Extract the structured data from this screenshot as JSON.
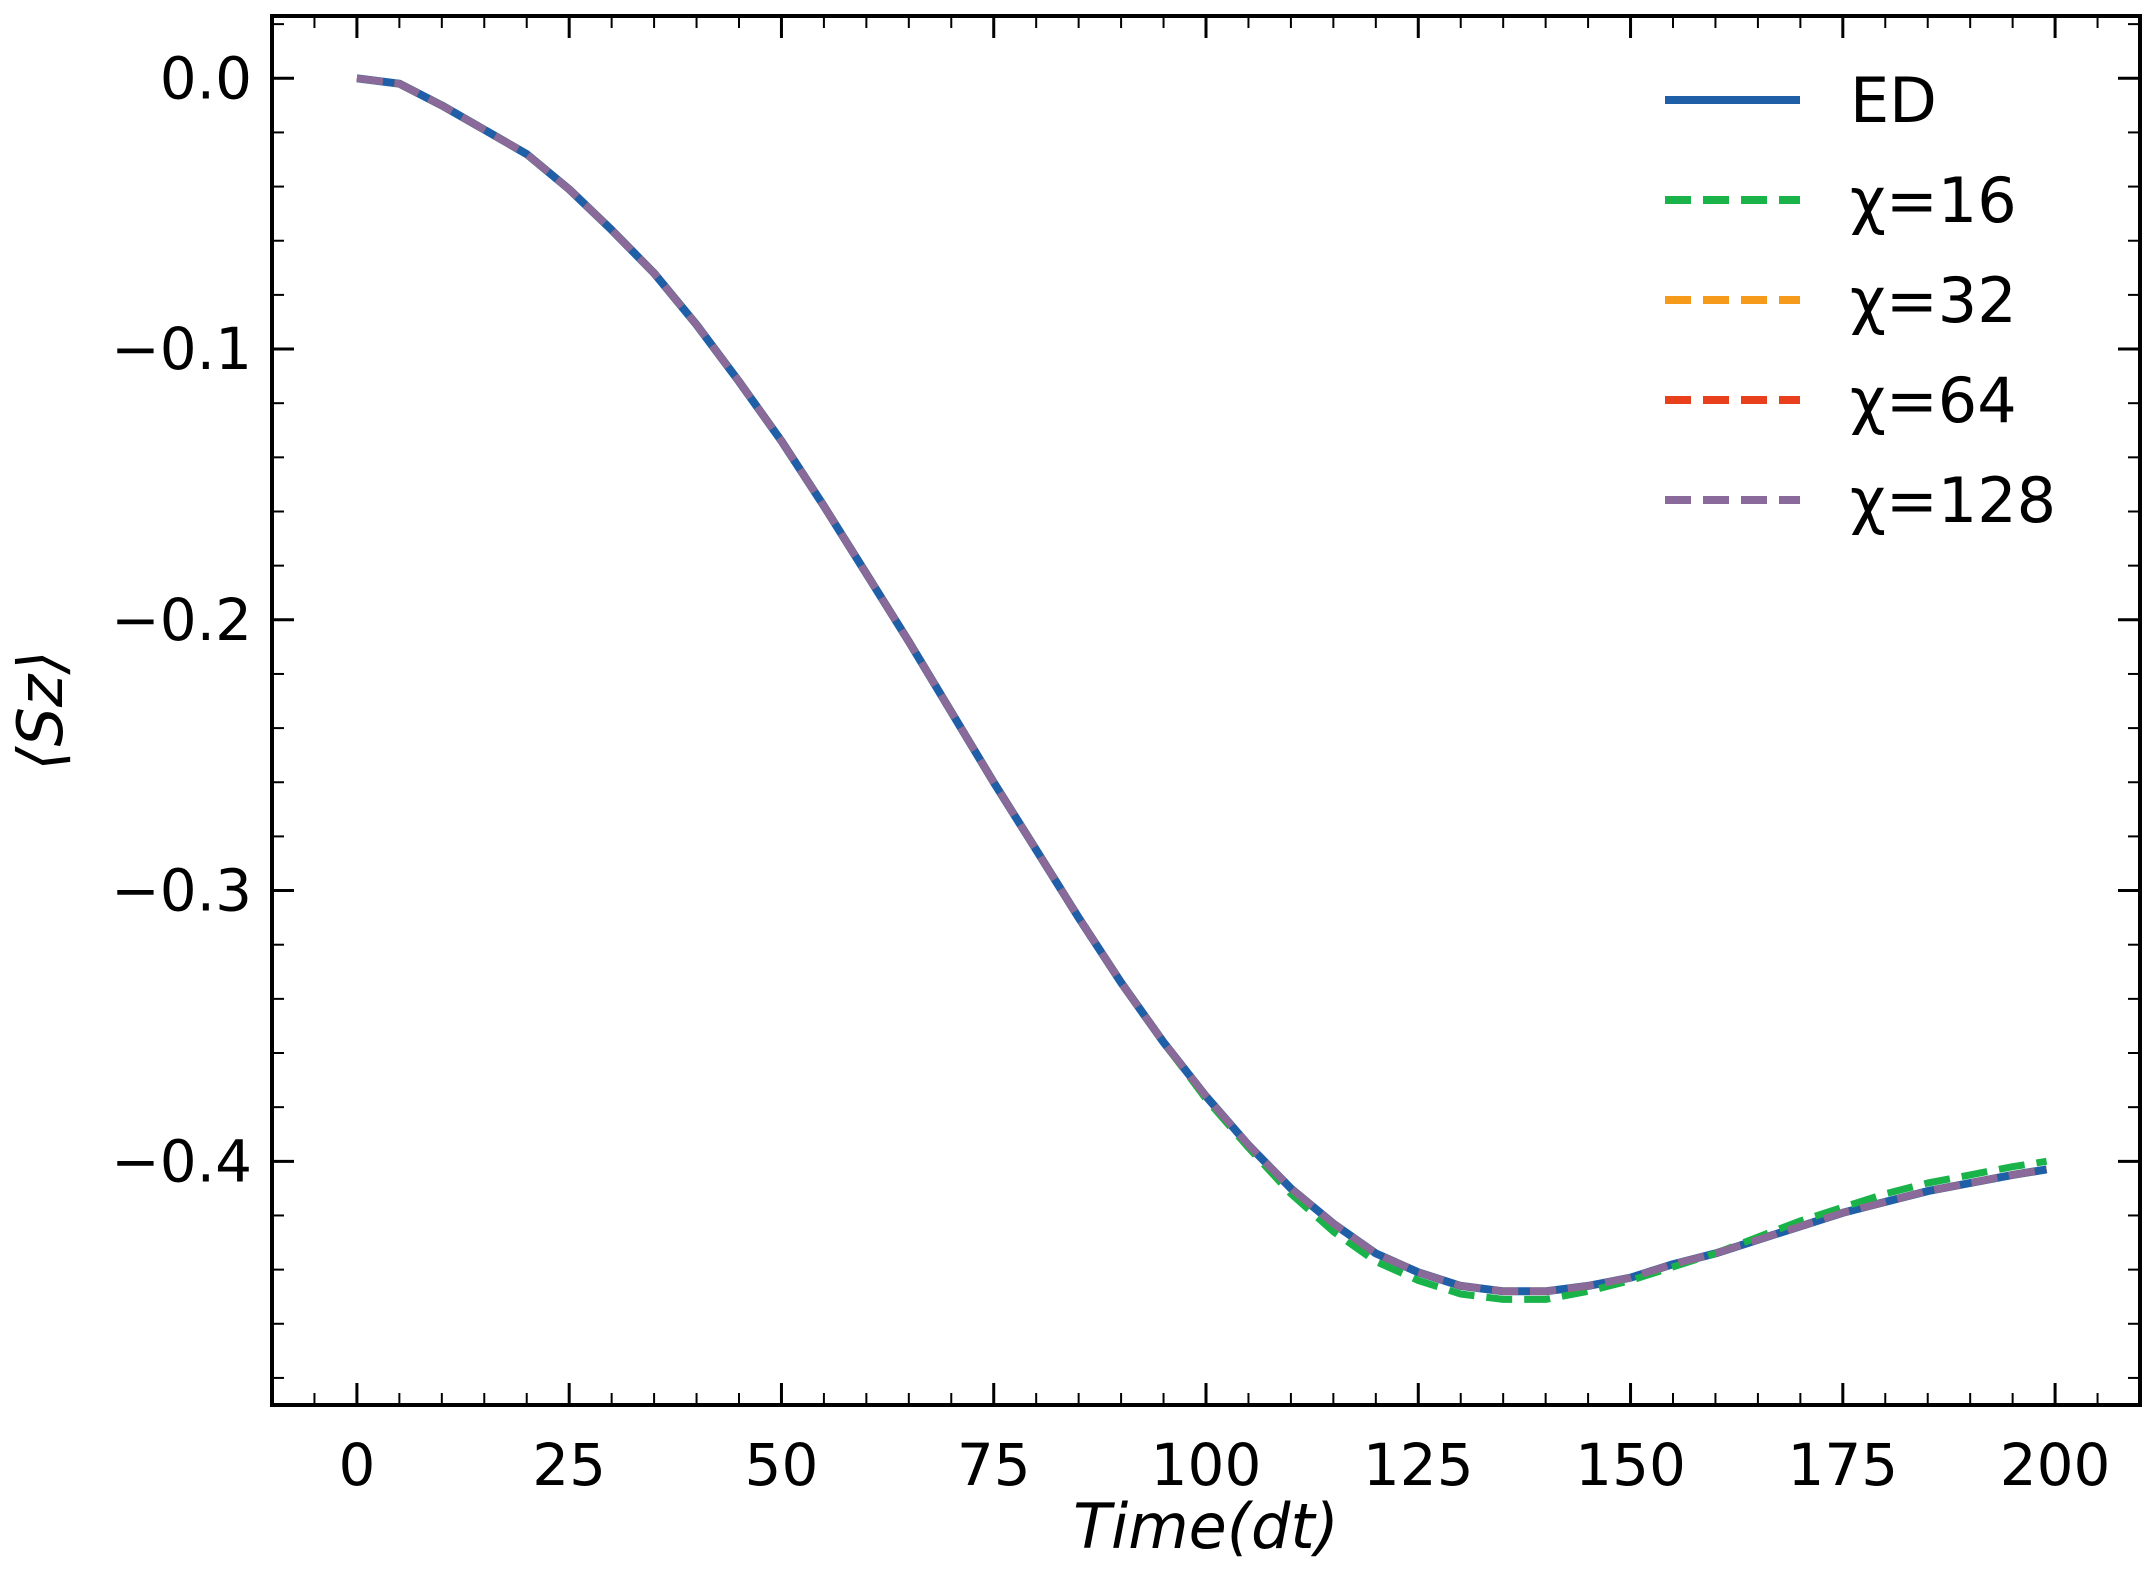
{
  "chart_data": {
    "type": "line",
    "xlabel": "Time(dt)",
    "ylabel": "⟨Sz⟩",
    "xlim": [
      -10,
      210
    ],
    "ylim": [
      -0.49,
      0.023
    ],
    "xticks": [
      0,
      25,
      50,
      75,
      100,
      125,
      150,
      175,
      200
    ],
    "yticks": [
      0.0,
      -0.1,
      -0.2,
      -0.3,
      -0.4
    ],
    "xtick_labels": [
      "0",
      "25",
      "50",
      "75",
      "100",
      "125",
      "150",
      "175",
      "200"
    ],
    "ytick_labels": [
      "0.0",
      "−0.1",
      "−0.2",
      "−0.3",
      "−0.4"
    ],
    "grid": false,
    "legend_position": "top-right",
    "x": [
      0,
      5,
      10,
      15,
      20,
      25,
      30,
      35,
      40,
      45,
      50,
      55,
      60,
      65,
      70,
      75,
      80,
      85,
      90,
      95,
      100,
      105,
      110,
      115,
      120,
      125,
      130,
      135,
      140,
      145,
      150,
      155,
      160,
      165,
      170,
      175,
      180,
      185,
      190,
      195,
      199
    ],
    "series": [
      {
        "name": "ED",
        "color": "#1f5fa8",
        "dash": "solid",
        "values": [
          0.0,
          -0.002,
          -0.01,
          -0.019,
          -0.028,
          -0.041,
          -0.056,
          -0.072,
          -0.091,
          -0.112,
          -0.134,
          -0.158,
          -0.183,
          -0.208,
          -0.234,
          -0.26,
          -0.285,
          -0.31,
          -0.334,
          -0.356,
          -0.376,
          -0.394,
          -0.41,
          -0.423,
          -0.434,
          -0.441,
          -0.446,
          -0.448,
          -0.448,
          -0.446,
          -0.443,
          -0.438,
          -0.434,
          -0.429,
          -0.424,
          -0.419,
          -0.415,
          -0.411,
          -0.408,
          -0.405,
          -0.403
        ]
      },
      {
        "name": "χ=16",
        "color": "#19b34a",
        "dash": "dashed",
        "values": [
          0.0,
          -0.002,
          -0.01,
          -0.019,
          -0.028,
          -0.041,
          -0.056,
          -0.072,
          -0.091,
          -0.112,
          -0.134,
          -0.158,
          -0.183,
          -0.208,
          -0.234,
          -0.26,
          -0.285,
          -0.31,
          -0.334,
          -0.356,
          -0.377,
          -0.395,
          -0.412,
          -0.426,
          -0.437,
          -0.444,
          -0.449,
          -0.451,
          -0.451,
          -0.448,
          -0.444,
          -0.439,
          -0.434,
          -0.428,
          -0.422,
          -0.417,
          -0.412,
          -0.408,
          -0.405,
          -0.402,
          -0.4
        ]
      },
      {
        "name": "χ=32",
        "color": "#f59a1b",
        "dash": "dashed",
        "values": [
          0.0,
          -0.002,
          -0.01,
          -0.019,
          -0.028,
          -0.041,
          -0.056,
          -0.072,
          -0.091,
          -0.112,
          -0.134,
          -0.158,
          -0.183,
          -0.208,
          -0.234,
          -0.26,
          -0.285,
          -0.31,
          -0.334,
          -0.356,
          -0.376,
          -0.394,
          -0.41,
          -0.423,
          -0.434,
          -0.441,
          -0.446,
          -0.448,
          -0.448,
          -0.446,
          -0.443,
          -0.438,
          -0.434,
          -0.429,
          -0.424,
          -0.419,
          -0.415,
          -0.411,
          -0.408,
          -0.405,
          -0.403
        ]
      },
      {
        "name": "χ=64",
        "color": "#e8401c",
        "dash": "dashed",
        "values": [
          0.0,
          -0.002,
          -0.01,
          -0.019,
          -0.028,
          -0.041,
          -0.056,
          -0.072,
          -0.091,
          -0.112,
          -0.134,
          -0.158,
          -0.183,
          -0.208,
          -0.234,
          -0.26,
          -0.285,
          -0.31,
          -0.334,
          -0.356,
          -0.376,
          -0.394,
          -0.41,
          -0.423,
          -0.434,
          -0.441,
          -0.446,
          -0.448,
          -0.448,
          -0.446,
          -0.443,
          -0.438,
          -0.434,
          -0.429,
          -0.424,
          -0.419,
          -0.415,
          -0.411,
          -0.408,
          -0.405,
          -0.403
        ]
      },
      {
        "name": "χ=128",
        "color": "#8a6a9a",
        "dash": "dashed",
        "values": [
          0.0,
          -0.002,
          -0.01,
          -0.019,
          -0.028,
          -0.041,
          -0.056,
          -0.072,
          -0.091,
          -0.112,
          -0.134,
          -0.158,
          -0.183,
          -0.208,
          -0.234,
          -0.26,
          -0.285,
          -0.31,
          -0.334,
          -0.356,
          -0.376,
          -0.394,
          -0.41,
          -0.423,
          -0.434,
          -0.441,
          -0.446,
          -0.448,
          -0.448,
          -0.446,
          -0.443,
          -0.438,
          -0.434,
          -0.429,
          -0.424,
          -0.419,
          -0.415,
          -0.411,
          -0.408,
          -0.405,
          -0.403
        ]
      }
    ]
  }
}
